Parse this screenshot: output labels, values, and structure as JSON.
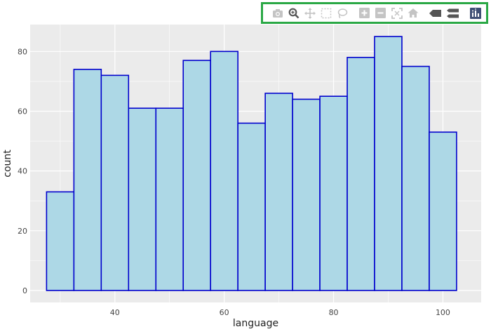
{
  "chart_data": {
    "type": "histogram",
    "xlabel": "language",
    "ylabel": "count",
    "bin_width": 5,
    "bins": [
      {
        "start": 27.5,
        "end": 32.5,
        "count": 33
      },
      {
        "start": 32.5,
        "end": 37.5,
        "count": 74
      },
      {
        "start": 37.5,
        "end": 42.5,
        "count": 72
      },
      {
        "start": 42.5,
        "end": 47.5,
        "count": 61
      },
      {
        "start": 47.5,
        "end": 52.5,
        "count": 61
      },
      {
        "start": 52.5,
        "end": 57.5,
        "count": 77
      },
      {
        "start": 57.5,
        "end": 62.5,
        "count": 80
      },
      {
        "start": 62.5,
        "end": 67.5,
        "count": 56
      },
      {
        "start": 67.5,
        "end": 72.5,
        "count": 66
      },
      {
        "start": 72.5,
        "end": 77.5,
        "count": 64
      },
      {
        "start": 77.5,
        "end": 82.5,
        "count": 65
      },
      {
        "start": 82.5,
        "end": 87.5,
        "count": 78
      },
      {
        "start": 87.5,
        "end": 92.5,
        "count": 85
      },
      {
        "start": 92.5,
        "end": 97.5,
        "count": 75
      },
      {
        "start": 97.5,
        "end": 102.5,
        "count": 53
      }
    ],
    "xlim": [
      24.5,
      107
    ],
    "ylim": [
      -4,
      89
    ],
    "xticks": [
      40,
      60,
      80,
      100
    ],
    "yticks": [
      0,
      20,
      40,
      60,
      80
    ],
    "grid": true,
    "colors": {
      "bar_fill": "#add8e6",
      "bar_edge": "#0000cd",
      "plot_bg": "#ebebeb",
      "grid": "#ffffff"
    }
  },
  "modebar": {
    "buttons": [
      "camera-icon",
      "zoom-icon",
      "pan-icon",
      "box-select-icon",
      "lasso-select-icon",
      "zoom-in-icon",
      "zoom-out-icon",
      "autoscale-icon",
      "reset-axes-icon",
      "hover-closest-icon",
      "hover-compare-icon",
      "plotly-logo-icon"
    ],
    "border_color": "#2aa845"
  }
}
